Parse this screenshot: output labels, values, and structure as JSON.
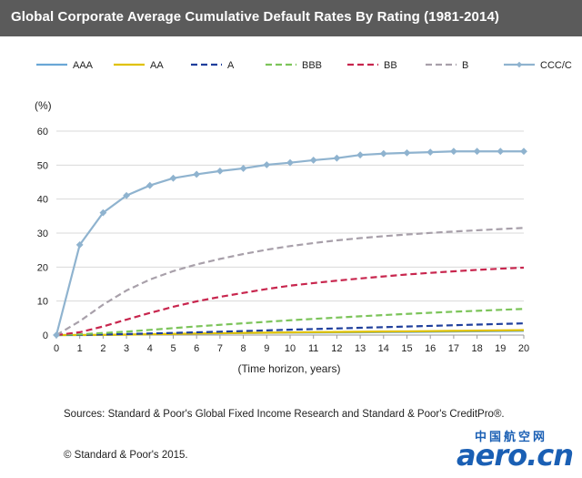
{
  "header": {
    "title": "Global Corporate Average Cumulative Default Rates By Rating (1981-2014)"
  },
  "chart_data": {
    "type": "line",
    "title": "Global Corporate Average Cumulative Default Rates By Rating (1981-2014)",
    "xlabel": "(Time horizon, years)",
    "ylabel": "(%)",
    "xlim": [
      0,
      20
    ],
    "ylim": [
      0,
      60
    ],
    "x_ticks": [
      "0",
      "1",
      "2",
      "3",
      "4",
      "5",
      "6",
      "7",
      "8",
      "9",
      "10",
      "11",
      "12",
      "13",
      "14",
      "15",
      "16",
      "17",
      "18",
      "19",
      "20"
    ],
    "y_ticks": [
      "0",
      "10",
      "20",
      "30",
      "40",
      "50",
      "60"
    ],
    "grid": "horizontal",
    "legend": "top",
    "x": [
      0,
      1,
      2,
      3,
      4,
      5,
      6,
      7,
      8,
      9,
      10,
      11,
      12,
      13,
      14,
      15,
      16,
      17,
      18,
      19,
      20
    ],
    "series": [
      {
        "name": "AAA",
        "color": "#6aa7d6",
        "style": "solid",
        "marker": false,
        "values": [
          0,
          0.0,
          0.03,
          0.13,
          0.24,
          0.35,
          0.45,
          0.51,
          0.59,
          0.65,
          0.7,
          0.73,
          0.76,
          0.79,
          0.85,
          0.91,
          0.97,
          1.03,
          1.1,
          1.17,
          1.24
        ]
      },
      {
        "name": "AA",
        "color": "#e0c100",
        "style": "solid",
        "marker": false,
        "values": [
          0,
          0.02,
          0.07,
          0.13,
          0.23,
          0.34,
          0.45,
          0.55,
          0.63,
          0.71,
          0.78,
          0.85,
          0.91,
          0.97,
          1.03,
          1.09,
          1.16,
          1.23,
          1.3,
          1.37,
          1.45
        ]
      },
      {
        "name": "A",
        "color": "#1f3f9c",
        "style": "dash",
        "marker": false,
        "values": [
          0,
          0.07,
          0.18,
          0.3,
          0.46,
          0.62,
          0.8,
          0.99,
          1.18,
          1.38,
          1.58,
          1.77,
          1.95,
          2.14,
          2.32,
          2.51,
          2.7,
          2.89,
          3.08,
          3.26,
          3.44
        ]
      },
      {
        "name": "BBB",
        "color": "#7cc45a",
        "style": "dash",
        "marker": false,
        "values": [
          0,
          0.21,
          0.6,
          1.01,
          1.52,
          2.04,
          2.55,
          3.01,
          3.46,
          3.9,
          4.35,
          4.76,
          5.14,
          5.52,
          5.88,
          6.23,
          6.56,
          6.87,
          7.13,
          7.42,
          7.69
        ]
      },
      {
        "name": "BB",
        "color": "#c8264e",
        "style": "dash",
        "marker": false,
        "values": [
          0,
          0.83,
          2.53,
          4.55,
          6.5,
          8.31,
          9.91,
          11.24,
          12.4,
          13.54,
          14.53,
          15.29,
          16.0,
          16.65,
          17.25,
          17.82,
          18.3,
          18.75,
          19.17,
          19.53,
          19.83
        ]
      },
      {
        "name": "B",
        "color": "#a8a0aa",
        "style": "dash",
        "marker": false,
        "values": [
          0,
          4.08,
          8.95,
          13.11,
          16.32,
          18.81,
          20.77,
          22.4,
          23.84,
          25.11,
          26.17,
          27.06,
          27.85,
          28.52,
          29.08,
          29.59,
          30.05,
          30.46,
          30.82,
          31.18,
          31.52
        ]
      },
      {
        "name": "CCC/C",
        "color": "#8fb3cf",
        "style": "solid",
        "marker": true,
        "values": [
          0,
          26.55,
          35.99,
          41.05,
          44.01,
          46.15,
          47.29,
          48.25,
          49.03,
          50.09,
          50.71,
          51.45,
          52.05,
          52.99,
          53.38,
          53.6,
          53.81,
          54.05,
          54.05,
          54.05,
          54.05
        ]
      }
    ]
  },
  "footer": {
    "source": "Sources: Standard & Poor's Global Fixed Income Research and Standard & Poor's CreditPro®.",
    "copyright": "© Standard & Poor's 2015."
  },
  "watermark": {
    "cn": "中国航空网",
    "en": "aero.cn",
    "color": "#1a5fb4"
  }
}
